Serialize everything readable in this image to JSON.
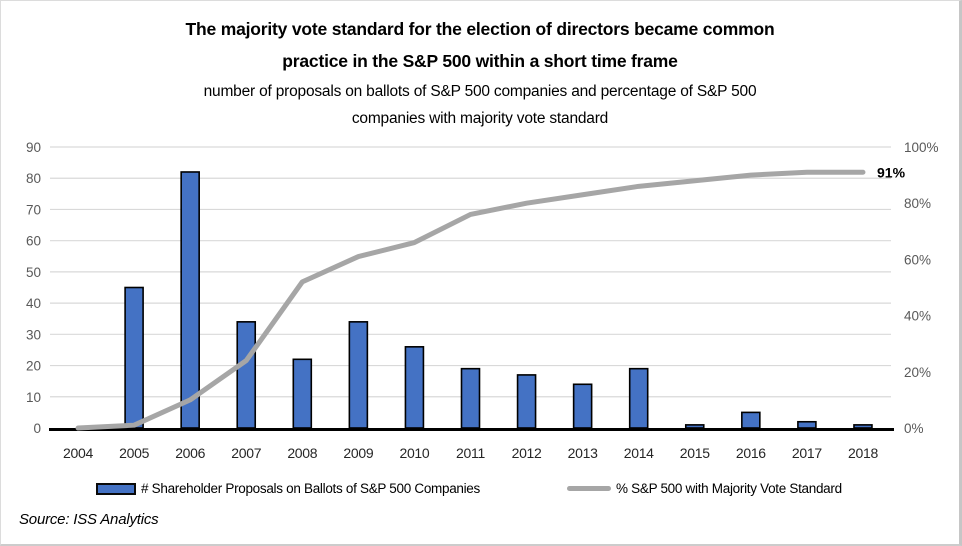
{
  "title": "The majority vote standard for the election of directors became common\npractice in the S&P 500 within a short time frame",
  "subtitle": "number of proposals on ballots of S&P 500 companies and percentage of S&P 500\ncompanies with majority vote standard",
  "source": "Source: ISS Analytics",
  "colors": {
    "bar_fill": "#4472C4",
    "bar_border": "#000000",
    "line": "#A6A6A6",
    "gridline": "#D9D9D9",
    "axis_tick_text": "#595959",
    "year_text": "#262626",
    "baseline": "#000000"
  },
  "chart_data": {
    "type": "combo_bar_line",
    "categories": [
      "2004",
      "2005",
      "2006",
      "2007",
      "2008",
      "2009",
      "2010",
      "2011",
      "2012",
      "2013",
      "2014",
      "2015",
      "2016",
      "2017",
      "2018"
    ],
    "series": [
      {
        "name": "# Shareholder Proposals on Ballots of S&P 500 Companies",
        "type": "bar",
        "axis": "left",
        "color": "#4472C4",
        "border_color": "#000000",
        "values": [
          0,
          45,
          82,
          34,
          22,
          34,
          26,
          19,
          17,
          14,
          19,
          1,
          5,
          2,
          1
        ]
      },
      {
        "name": "% S&P 500 with Majority Vote Standard",
        "type": "line",
        "axis": "right",
        "color": "#A6A6A6",
        "values": [
          0,
          1,
          10,
          24,
          52,
          61,
          66,
          76,
          80,
          83,
          86,
          88,
          90,
          91,
          91
        ]
      }
    ],
    "left_axis": {
      "min": 0,
      "max": 90,
      "step": 10,
      "tick_labels": [
        "0",
        "10",
        "20",
        "30",
        "40",
        "50",
        "60",
        "70",
        "80",
        "90"
      ]
    },
    "right_axis": {
      "min": 0,
      "max": 100,
      "step": 20,
      "tick_labels": [
        "0%",
        "20%",
        "40%",
        "60%",
        "80%",
        "100%"
      ]
    },
    "end_label": "91%",
    "grid": true,
    "legend_position": "bottom"
  }
}
